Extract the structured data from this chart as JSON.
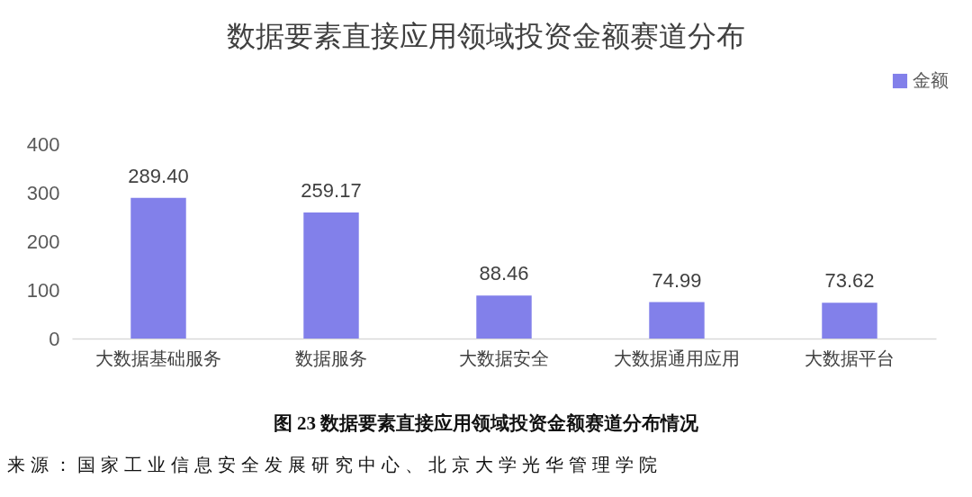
{
  "chart_data": {
    "type": "bar",
    "title": "数据要素直接应用领域投资金额赛道分布",
    "categories": [
      "大数据基础服务",
      "数据服务",
      "大数据安全",
      "大数据通用应用",
      "大数据平台"
    ],
    "series": [
      {
        "name": "金额",
        "color": "#8280ea",
        "values": [
          289.4,
          259.17,
          88.46,
          74.99,
          73.62
        ],
        "value_labels": [
          "289.40",
          "259.17",
          "88.46",
          "74.99",
          "73.62"
        ]
      }
    ],
    "ylim": [
      0,
      400
    ],
    "yticks": [
      0,
      100,
      200,
      300,
      400
    ],
    "legend": "top right",
    "annotations": [
      "图 23 数据要素直接应用领域投资金额赛道分布情况",
      "来源：国家工业信息安全发展研究中心、北京大学光华管理学院"
    ]
  }
}
